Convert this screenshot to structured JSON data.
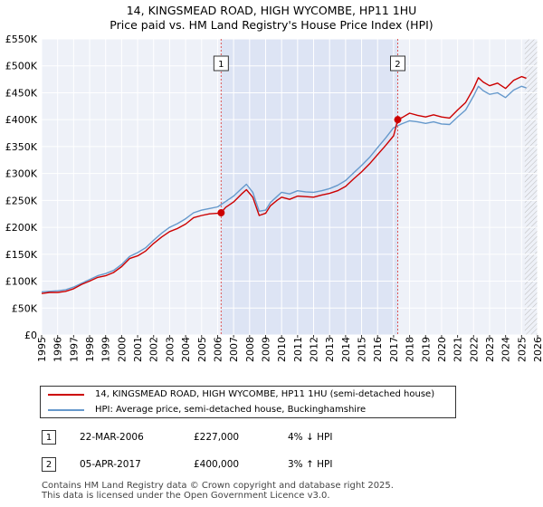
{
  "chart_data": {
    "type": "line",
    "title": "14, KINGSMEAD ROAD, HIGH WYCOMBE, HP11 1HU",
    "subtitle": "Price paid vs. HM Land Registry's House Price Index (HPI)",
    "xlim": [
      1995,
      2026
    ],
    "ylim": [
      0,
      550000
    ],
    "y_ticks": [
      0,
      50000,
      100000,
      150000,
      200000,
      250000,
      300000,
      350000,
      400000,
      450000,
      500000,
      550000
    ],
    "y_tick_labels": [
      "£0",
      "£50K",
      "£100K",
      "£150K",
      "£200K",
      "£250K",
      "£300K",
      "£350K",
      "£400K",
      "£450K",
      "£500K",
      "£550K"
    ],
    "x_ticks": [
      1995,
      1996,
      1997,
      1998,
      1999,
      2000,
      2001,
      2002,
      2003,
      2004,
      2005,
      2006,
      2007,
      2008,
      2009,
      2010,
      2011,
      2012,
      2013,
      2014,
      2015,
      2016,
      2017,
      2018,
      2019,
      2020,
      2021,
      2022,
      2023,
      2024,
      2025,
      2026
    ],
    "grid": true,
    "shaded_region": [
      2006.22,
      2017.26
    ],
    "hatch_from": 2025.2,
    "markers": [
      {
        "label": "1",
        "x": 2006.22
      },
      {
        "label": "2",
        "x": 2017.26
      }
    ],
    "sales": [
      {
        "x": 2006.22,
        "y": 227000
      },
      {
        "x": 2017.26,
        "y": 400000
      }
    ],
    "series": [
      {
        "name": "14, KINGSMEAD ROAD, HIGH WYCOMBE, HP11 1HU (semi-detached house)",
        "color": "#cc0000",
        "x": [
          1995.0,
          1995.5,
          1996.0,
          1996.5,
          1997.0,
          1997.5,
          1998.0,
          1998.5,
          1999.0,
          1999.5,
          2000.0,
          2000.5,
          2001.0,
          2001.5,
          2002.0,
          2002.5,
          2003.0,
          2003.5,
          2004.0,
          2004.5,
          2005.0,
          2005.5,
          2006.0,
          2006.22,
          2006.5,
          2007.0,
          2007.5,
          2007.8,
          2008.2,
          2008.6,
          2009.0,
          2009.3,
          2009.7,
          2010.0,
          2010.5,
          2011.0,
          2011.5,
          2012.0,
          2012.5,
          2013.0,
          2013.5,
          2014.0,
          2014.5,
          2015.0,
          2015.5,
          2016.0,
          2016.5,
          2017.0,
          2017.26,
          2017.6,
          2018.0,
          2018.5,
          2019.0,
          2019.5,
          2020.0,
          2020.5,
          2021.0,
          2021.5,
          2022.0,
          2022.3,
          2022.6,
          2023.0,
          2023.5,
          2024.0,
          2024.5,
          2025.0,
          2025.3
        ],
        "y": [
          77000,
          79000,
          79000,
          81000,
          86000,
          94000,
          100000,
          107000,
          110000,
          116000,
          127000,
          142000,
          147000,
          156000,
          170000,
          182000,
          192000,
          198000,
          206000,
          218000,
          222000,
          225000,
          226000,
          227000,
          237000,
          247000,
          262000,
          270000,
          256000,
          222000,
          226000,
          240000,
          250000,
          256000,
          252000,
          258000,
          257000,
          256000,
          260000,
          263000,
          268000,
          276000,
          290000,
          303000,
          318000,
          335000,
          352000,
          370000,
          400000,
          405000,
          412000,
          408000,
          405000,
          409000,
          405000,
          403000,
          418000,
          432000,
          458000,
          478000,
          470000,
          463000,
          468000,
          458000,
          473000,
          480000,
          477000
        ]
      },
      {
        "name": "HPI: Average price, semi-detached house, Buckinghamshire",
        "color": "#6699cc",
        "x": [
          1995.0,
          1995.5,
          1996.0,
          1996.5,
          1997.0,
          1997.5,
          1998.0,
          1998.5,
          1999.0,
          1999.5,
          2000.0,
          2000.5,
          2001.0,
          2001.5,
          2002.0,
          2002.5,
          2003.0,
          2003.5,
          2004.0,
          2004.5,
          2005.0,
          2005.5,
          2006.0,
          2006.5,
          2007.0,
          2007.5,
          2007.8,
          2008.2,
          2008.6,
          2009.0,
          2009.3,
          2009.7,
          2010.0,
          2010.5,
          2011.0,
          2011.5,
          2012.0,
          2012.5,
          2013.0,
          2013.5,
          2014.0,
          2014.5,
          2015.0,
          2015.5,
          2016.0,
          2016.5,
          2017.0,
          2017.5,
          2018.0,
          2018.5,
          2019.0,
          2019.5,
          2020.0,
          2020.5,
          2021.0,
          2021.5,
          2022.0,
          2022.3,
          2022.6,
          2023.0,
          2023.5,
          2024.0,
          2024.5,
          2025.0,
          2025.3
        ],
        "y": [
          80000,
          81000,
          82000,
          84000,
          89000,
          96000,
          103000,
          110000,
          114000,
          120000,
          131000,
          146000,
          153000,
          162000,
          176000,
          189000,
          200000,
          207000,
          216000,
          227000,
          232000,
          235000,
          238000,
          248000,
          258000,
          272000,
          280000,
          265000,
          230000,
          232000,
          246000,
          257000,
          265000,
          262000,
          268000,
          266000,
          265000,
          268000,
          272000,
          278000,
          287000,
          301000,
          315000,
          330000,
          348000,
          366000,
          385000,
          392000,
          398000,
          396000,
          393000,
          396000,
          392000,
          391000,
          405000,
          418000,
          444000,
          462000,
          454000,
          447000,
          450000,
          441000,
          455000,
          462000,
          459000
        ]
      }
    ]
  },
  "legend": {
    "items": [
      {
        "label": "14, KINGSMEAD ROAD, HIGH WYCOMBE, HP11 1HU (semi-detached house)",
        "color": "#cc0000"
      },
      {
        "label": "HPI: Average price, semi-detached house, Buckinghamshire",
        "color": "#6699cc"
      }
    ]
  },
  "transactions": [
    {
      "num": "1",
      "date": "22-MAR-2006",
      "price": "£227,000",
      "hpi": "4% ↓ HPI"
    },
    {
      "num": "2",
      "date": "05-APR-2017",
      "price": "£400,000",
      "hpi": "3% ↑ HPI"
    }
  ],
  "footer": {
    "line1": "Contains HM Land Registry data © Crown copyright and database right 2025.",
    "line2": "This data is licensed under the Open Government Licence v3.0."
  }
}
